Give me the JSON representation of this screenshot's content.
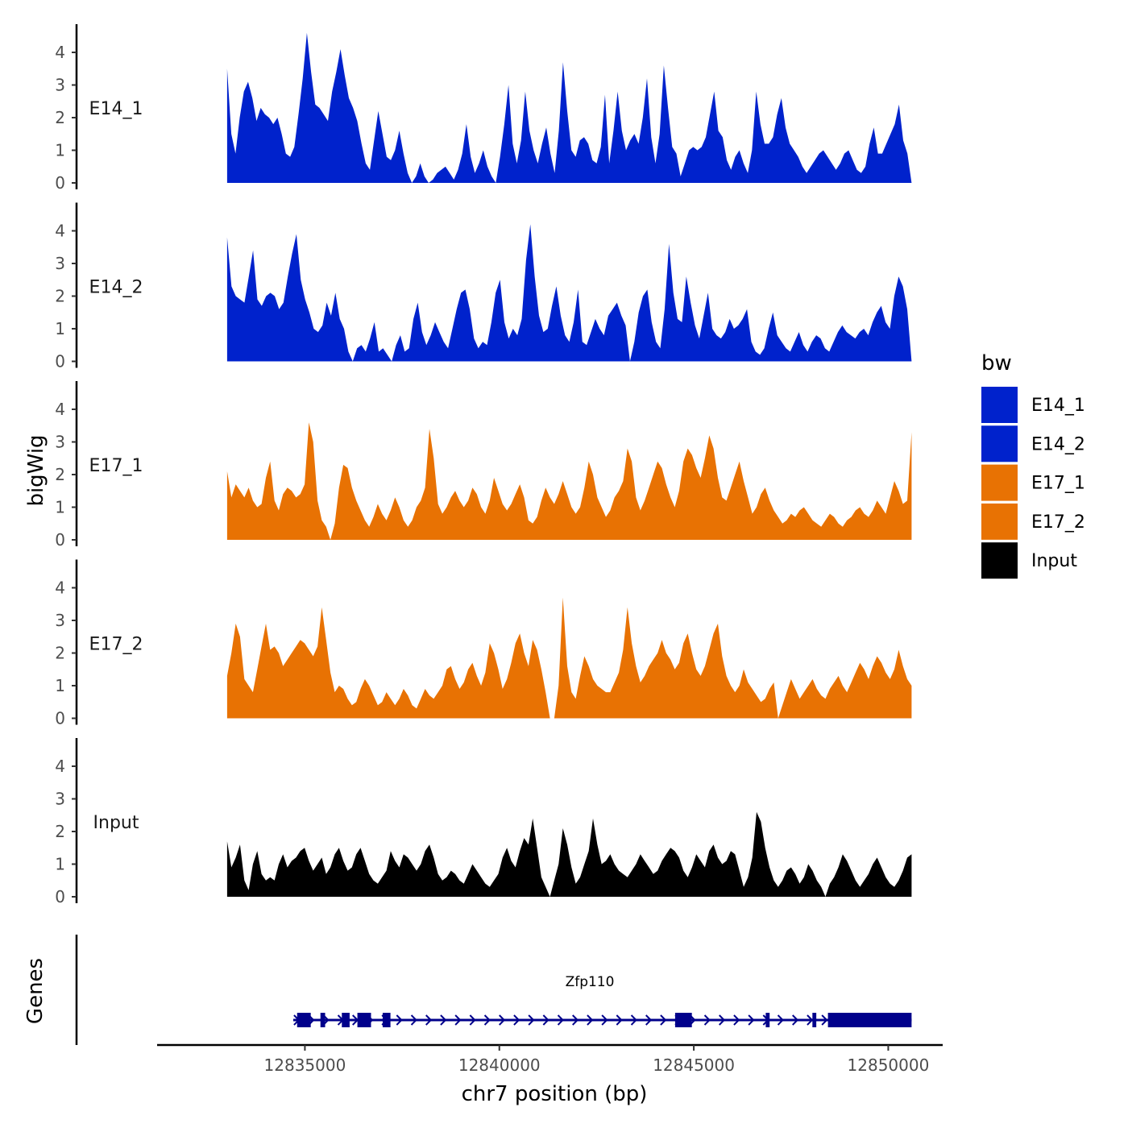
{
  "colors": {
    "E14": "#0022CC",
    "E17": "#E87203",
    "Input": "#000000",
    "gene": "#00008B",
    "axis": "#000000",
    "tick_text": "#4d4d4d"
  },
  "chart_data": {
    "type": "area",
    "ylabel": "bigWig",
    "xlabel": "chr7 position (bp)",
    "xlim": [
      12831200,
      12851400
    ],
    "ylim": [
      0,
      4.9
    ],
    "y_ticks": [
      0,
      1,
      2,
      3,
      4
    ],
    "x_ticks": [
      12835000,
      12840000,
      12845000,
      12850000
    ],
    "x_tick_labels": [
      "12835000",
      "12840000",
      "12845000",
      "12850000"
    ],
    "legend": {
      "title": "bw",
      "position": "right",
      "entries": [
        {
          "label": "E14_1",
          "color": "#0022CC"
        },
        {
          "label": "E14_2",
          "color": "#0022CC"
        },
        {
          "label": "E17_1",
          "color": "#E87203"
        },
        {
          "label": "E17_2",
          "color": "#E87203"
        },
        {
          "label": "Input",
          "color": "#000000"
        }
      ]
    },
    "x_start": 12833000,
    "x_end": 12850600,
    "tracks": [
      {
        "name": "E14_1",
        "color": "#0022CC",
        "values": [
          3.5,
          1.5,
          0.9,
          2.0,
          2.8,
          3.1,
          2.6,
          1.9,
          2.3,
          2.1,
          2.0,
          1.8,
          2.0,
          1.5,
          0.9,
          0.8,
          1.1,
          2.1,
          3.2,
          4.6,
          3.4,
          2.4,
          2.3,
          2.1,
          1.9,
          2.8,
          3.4,
          4.1,
          3.3,
          2.6,
          2.3,
          1.9,
          1.2,
          0.6,
          0.4,
          1.3,
          2.2,
          1.5,
          0.8,
          0.7,
          1.0,
          1.6,
          0.9,
          0.3,
          0.0,
          0.2,
          0.6,
          0.2,
          0.0,
          0.1,
          0.3,
          0.4,
          0.5,
          0.3,
          0.1,
          0.4,
          0.9,
          1.8,
          0.8,
          0.3,
          0.6,
          1.0,
          0.5,
          0.2,
          0.0,
          0.8,
          1.8,
          3.0,
          1.2,
          0.6,
          1.3,
          2.8,
          1.6,
          1.0,
          0.6,
          1.2,
          1.7,
          0.9,
          0.3,
          1.6,
          3.7,
          2.2,
          1.0,
          0.8,
          1.3,
          1.4,
          1.2,
          0.7,
          0.6,
          1.1,
          2.7,
          0.6,
          1.6,
          2.8,
          1.6,
          1.0,
          1.3,
          1.5,
          1.2,
          2.0,
          3.2,
          1.4,
          0.6,
          1.5,
          3.6,
          2.3,
          1.1,
          0.9,
          0.2,
          0.6,
          1.0,
          1.1,
          1.0,
          1.1,
          1.4,
          2.1,
          2.8,
          1.6,
          1.4,
          0.7,
          0.4,
          0.8,
          1.0,
          0.6,
          0.3,
          1.0,
          2.8,
          1.8,
          1.2,
          1.2,
          1.4,
          2.1,
          2.6,
          1.7,
          1.2,
          1.0,
          0.8,
          0.5,
          0.3,
          0.5,
          0.7,
          0.9,
          1.0,
          0.8,
          0.6,
          0.4,
          0.6,
          0.9,
          1.0,
          0.7,
          0.4,
          0.3,
          0.5,
          1.2,
          1.7,
          0.9,
          0.9,
          1.2,
          1.5,
          1.8,
          2.4,
          1.3,
          0.9,
          0.0
        ]
      },
      {
        "name": "E14_2",
        "color": "#0022CC",
        "values": [
          3.8,
          2.3,
          2.0,
          1.9,
          1.8,
          2.6,
          3.4,
          1.9,
          1.7,
          2.0,
          2.1,
          2.0,
          1.6,
          1.8,
          2.6,
          3.3,
          3.9,
          2.5,
          1.9,
          1.5,
          1.0,
          0.9,
          1.1,
          1.8,
          1.4,
          2.1,
          1.3,
          1.0,
          0.3,
          0.0,
          0.4,
          0.5,
          0.3,
          0.7,
          1.2,
          0.3,
          0.4,
          0.2,
          0.0,
          0.5,
          0.8,
          0.3,
          0.4,
          1.3,
          1.8,
          0.9,
          0.5,
          0.8,
          1.2,
          0.9,
          0.6,
          0.4,
          1.0,
          1.6,
          2.1,
          2.2,
          1.6,
          0.7,
          0.4,
          0.6,
          0.5,
          1.2,
          2.1,
          2.5,
          1.2,
          0.7,
          1.0,
          0.8,
          1.3,
          3.1,
          4.2,
          2.6,
          1.4,
          0.9,
          1.0,
          1.7,
          2.3,
          1.4,
          0.8,
          0.6,
          1.2,
          2.2,
          0.6,
          0.5,
          0.9,
          1.3,
          1.0,
          0.8,
          1.4,
          1.6,
          1.8,
          1.4,
          1.1,
          0.0,
          0.6,
          1.5,
          2.0,
          2.2,
          1.2,
          0.6,
          0.4,
          1.6,
          3.6,
          2.1,
          1.3,
          1.2,
          2.6,
          1.8,
          1.1,
          0.7,
          1.4,
          2.1,
          1.0,
          0.8,
          0.7,
          0.9,
          1.3,
          1.0,
          1.1,
          1.3,
          1.6,
          0.6,
          0.3,
          0.2,
          0.4,
          1.0,
          1.5,
          0.8,
          0.6,
          0.4,
          0.3,
          0.6,
          0.9,
          0.5,
          0.3,
          0.6,
          0.8,
          0.7,
          0.4,
          0.3,
          0.6,
          0.9,
          1.1,
          0.9,
          0.8,
          0.7,
          0.9,
          1.0,
          0.8,
          1.2,
          1.5,
          1.7,
          1.2,
          1.0,
          2.0,
          2.6,
          2.3,
          1.6,
          0.0
        ]
      },
      {
        "name": "E17_1",
        "color": "#E87203",
        "values": [
          2.1,
          1.3,
          1.7,
          1.5,
          1.3,
          1.6,
          1.2,
          1.0,
          1.1,
          1.9,
          2.4,
          1.2,
          0.9,
          1.4,
          1.6,
          1.5,
          1.3,
          1.4,
          1.7,
          3.6,
          3.0,
          1.2,
          0.6,
          0.4,
          0.0,
          0.5,
          1.6,
          2.3,
          2.2,
          1.6,
          1.2,
          0.9,
          0.6,
          0.4,
          0.7,
          1.1,
          0.8,
          0.6,
          0.9,
          1.3,
          1.0,
          0.6,
          0.4,
          0.6,
          1.0,
          1.2,
          1.6,
          3.4,
          2.5,
          1.1,
          0.8,
          1.0,
          1.3,
          1.5,
          1.2,
          1.0,
          1.2,
          1.6,
          1.4,
          1.0,
          0.8,
          1.2,
          1.9,
          1.5,
          1.1,
          0.9,
          1.1,
          1.4,
          1.7,
          1.3,
          0.6,
          0.5,
          0.7,
          1.2,
          1.6,
          1.3,
          1.1,
          1.4,
          1.8,
          1.4,
          1.0,
          0.8,
          1.0,
          1.6,
          2.4,
          2.0,
          1.3,
          1.0,
          0.7,
          0.9,
          1.3,
          1.5,
          1.8,
          2.8,
          2.4,
          1.3,
          0.9,
          1.2,
          1.6,
          2.0,
          2.4,
          2.2,
          1.7,
          1.3,
          1.0,
          1.5,
          2.4,
          2.8,
          2.6,
          2.2,
          1.9,
          2.5,
          3.2,
          2.8,
          1.9,
          1.3,
          1.2,
          1.6,
          2.0,
          2.4,
          1.8,
          1.3,
          0.8,
          1.0,
          1.4,
          1.6,
          1.2,
          0.9,
          0.7,
          0.5,
          0.6,
          0.8,
          0.7,
          0.9,
          1.0,
          0.8,
          0.6,
          0.5,
          0.4,
          0.6,
          0.8,
          0.7,
          0.5,
          0.4,
          0.6,
          0.7,
          0.9,
          1.0,
          0.8,
          0.7,
          0.9,
          1.2,
          1.0,
          0.8,
          1.3,
          1.8,
          1.5,
          1.1,
          1.2,
          3.3
        ]
      },
      {
        "name": "E17_2",
        "color": "#E87203",
        "values": [
          1.3,
          2.0,
          2.9,
          2.5,
          1.2,
          1.0,
          0.8,
          1.5,
          2.2,
          2.9,
          2.1,
          2.2,
          2.0,
          1.6,
          1.8,
          2.0,
          2.2,
          2.4,
          2.3,
          2.1,
          1.9,
          2.2,
          3.4,
          2.4,
          1.4,
          0.8,
          1.0,
          0.9,
          0.6,
          0.4,
          0.5,
          0.9,
          1.2,
          1.0,
          0.7,
          0.4,
          0.5,
          0.8,
          0.6,
          0.4,
          0.6,
          0.9,
          0.7,
          0.4,
          0.3,
          0.6,
          0.9,
          0.7,
          0.6,
          0.8,
          1.0,
          1.5,
          1.6,
          1.2,
          0.9,
          1.1,
          1.5,
          1.7,
          1.3,
          1.0,
          1.4,
          2.3,
          2.0,
          1.5,
          0.9,
          1.2,
          1.7,
          2.3,
          2.6,
          2.0,
          1.6,
          2.4,
          2.1,
          1.5,
          0.8,
          0.0,
          0.0,
          1.0,
          3.7,
          1.6,
          0.8,
          0.6,
          1.3,
          1.9,
          1.6,
          1.2,
          1.0,
          0.9,
          0.8,
          0.8,
          1.1,
          1.4,
          2.1,
          3.4,
          2.3,
          1.6,
          1.1,
          1.3,
          1.6,
          1.8,
          2.0,
          2.4,
          2.0,
          1.8,
          1.5,
          1.7,
          2.3,
          2.6,
          2.0,
          1.5,
          1.3,
          1.6,
          2.1,
          2.6,
          2.9,
          1.9,
          1.3,
          1.0,
          0.8,
          1.0,
          1.5,
          1.1,
          0.9,
          0.7,
          0.5,
          0.6,
          0.9,
          1.1,
          0.0,
          0.4,
          0.8,
          1.2,
          0.9,
          0.6,
          0.8,
          1.0,
          1.2,
          0.9,
          0.7,
          0.6,
          0.9,
          1.1,
          1.3,
          1.0,
          0.8,
          1.1,
          1.4,
          1.7,
          1.5,
          1.2,
          1.6,
          1.9,
          1.7,
          1.4,
          1.2,
          1.5,
          2.1,
          1.6,
          1.2,
          1.0
        ]
      },
      {
        "name": "Input",
        "color": "#000000",
        "values": [
          1.7,
          0.9,
          1.2,
          1.6,
          0.5,
          0.2,
          1.0,
          1.4,
          0.7,
          0.5,
          0.6,
          0.5,
          1.0,
          1.3,
          0.9,
          1.1,
          1.2,
          1.4,
          1.5,
          1.1,
          0.8,
          1.0,
          1.2,
          0.7,
          0.9,
          1.3,
          1.5,
          1.1,
          0.8,
          0.9,
          1.3,
          1.5,
          1.1,
          0.7,
          0.5,
          0.4,
          0.6,
          0.8,
          1.4,
          1.1,
          0.9,
          1.3,
          1.2,
          1.0,
          0.8,
          1.0,
          1.4,
          1.6,
          1.2,
          0.7,
          0.5,
          0.6,
          0.8,
          0.7,
          0.5,
          0.4,
          0.7,
          1.0,
          0.8,
          0.6,
          0.4,
          0.3,
          0.5,
          0.7,
          1.2,
          1.5,
          1.1,
          0.9,
          1.4,
          1.8,
          1.6,
          2.4,
          1.5,
          0.6,
          0.3,
          0.0,
          0.5,
          1.0,
          2.1,
          1.6,
          0.9,
          0.4,
          0.6,
          1.0,
          1.4,
          2.4,
          1.6,
          1.0,
          1.1,
          1.3,
          1.0,
          0.8,
          0.7,
          0.6,
          0.8,
          1.0,
          1.3,
          1.1,
          0.9,
          0.7,
          0.8,
          1.1,
          1.3,
          1.5,
          1.4,
          1.2,
          0.8,
          0.6,
          0.9,
          1.3,
          1.1,
          0.9,
          1.4,
          1.6,
          1.2,
          1.0,
          1.1,
          1.4,
          1.3,
          0.8,
          0.3,
          0.6,
          1.2,
          2.6,
          2.3,
          1.5,
          0.9,
          0.5,
          0.3,
          0.5,
          0.8,
          0.9,
          0.7,
          0.4,
          0.6,
          1.0,
          0.8,
          0.5,
          0.3,
          0.0,
          0.4,
          0.6,
          0.9,
          1.3,
          1.1,
          0.8,
          0.5,
          0.3,
          0.5,
          0.7,
          1.0,
          1.2,
          0.9,
          0.6,
          0.4,
          0.3,
          0.5,
          0.8,
          1.2,
          1.3
        ]
      }
    ],
    "genes_track": {
      "label": "Genes",
      "gene_name": "Zfp110",
      "strand": "+",
      "gene_start": 12834700,
      "gene_end": 12850600,
      "exons": [
        [
          12834800,
          12835150
        ],
        [
          12835400,
          12835520
        ],
        [
          12835950,
          12836150
        ],
        [
          12836350,
          12836700
        ],
        [
          12837000,
          12837200
        ],
        [
          12844520,
          12844950
        ],
        [
          12846850,
          12846950
        ],
        [
          12848050,
          12848150
        ],
        [
          12848450,
          12850600
        ]
      ],
      "thick_exon": [
        12848450,
        12850600
      ]
    }
  }
}
